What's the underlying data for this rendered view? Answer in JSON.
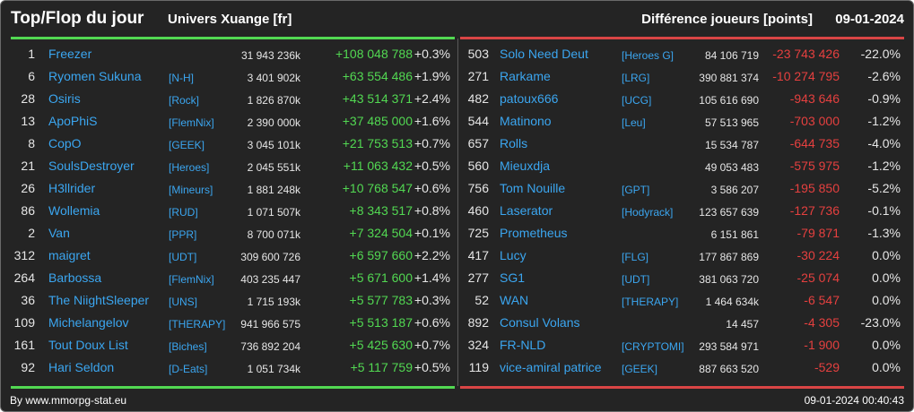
{
  "header": {
    "title": "Top/Flop du jour",
    "universe": "Univers Xuange [fr]",
    "metric": "Différence joueurs [points]",
    "date": "09-01-2024"
  },
  "colors": {
    "gain": "#52d852",
    "loss": "#e5403f",
    "link": "#3ba6f0",
    "background": "#242424"
  },
  "top": [
    {
      "rank": "1",
      "name": "Freezer",
      "alliance": "",
      "points": "31 943 236k",
      "diff": "+108 048 788",
      "pct": "+0.3%"
    },
    {
      "rank": "6",
      "name": "Ryomen Sukuna",
      "alliance": "[N-H]",
      "points": "3 401 902k",
      "diff": "+63 554 486",
      "pct": "+1.9%"
    },
    {
      "rank": "28",
      "name": "Osiris",
      "alliance": "[Rock]",
      "points": "1 826 870k",
      "diff": "+43 514 371",
      "pct": "+2.4%"
    },
    {
      "rank": "13",
      "name": "ApoPhiS",
      "alliance": "[FlemNix]",
      "points": "2 390 000k",
      "diff": "+37 485 000",
      "pct": "+1.6%"
    },
    {
      "rank": "8",
      "name": "CopO",
      "alliance": "[GEEK]",
      "points": "3 045 101k",
      "diff": "+21 753 513",
      "pct": "+0.7%"
    },
    {
      "rank": "21",
      "name": "SoulsDestroyer",
      "alliance": "[Heroes]",
      "points": "2 045 551k",
      "diff": "+11 063 432",
      "pct": "+0.5%"
    },
    {
      "rank": "26",
      "name": "H3llrider",
      "alliance": "[Mineurs]",
      "points": "1 881 248k",
      "diff": "+10 768 547",
      "pct": "+0.6%"
    },
    {
      "rank": "86",
      "name": "Wollemia",
      "alliance": "[RUD]",
      "points": "1 071 507k",
      "diff": "+8 343 517",
      "pct": "+0.8%"
    },
    {
      "rank": "2",
      "name": "Van",
      "alliance": "[PPR]",
      "points": "8 700 071k",
      "diff": "+7 324 504",
      "pct": "+0.1%"
    },
    {
      "rank": "312",
      "name": "maigret",
      "alliance": "[UDT]",
      "points": "309 600 726",
      "diff": "+6 597 660",
      "pct": "+2.2%"
    },
    {
      "rank": "264",
      "name": "Barbossa",
      "alliance": "[FlemNix]",
      "points": "403 235 447",
      "diff": "+5 671 600",
      "pct": "+1.4%"
    },
    {
      "rank": "36",
      "name": "The NiightSleeper",
      "alliance": "[UNS]",
      "points": "1 715 193k",
      "diff": "+5 577 783",
      "pct": "+0.3%"
    },
    {
      "rank": "109",
      "name": "Michelangelov",
      "alliance": "[THERAPY]",
      "points": "941 966 575",
      "diff": "+5 513 187",
      "pct": "+0.6%"
    },
    {
      "rank": "161",
      "name": "Tout Doux List",
      "alliance": "[Biches]",
      "points": "736 892 204",
      "diff": "+5 425 630",
      "pct": "+0.7%"
    },
    {
      "rank": "92",
      "name": "Hari Seldon",
      "alliance": "[D-Eats]",
      "points": "1 051 734k",
      "diff": "+5 117 759",
      "pct": "+0.5%"
    }
  ],
  "flop": [
    {
      "rank": "503",
      "name": "Solo Need Deut",
      "alliance": "[Heroes G]",
      "points": "84 106 719",
      "diff": "-23 743 426",
      "pct": "-22.0%"
    },
    {
      "rank": "271",
      "name": "Rarkame",
      "alliance": "[LRG]",
      "points": "390 881 374",
      "diff": "-10 274 795",
      "pct": "-2.6%"
    },
    {
      "rank": "482",
      "name": "patoux666",
      "alliance": "[UCG]",
      "points": "105 616 690",
      "diff": "-943 646",
      "pct": "-0.9%"
    },
    {
      "rank": "544",
      "name": "Matinono",
      "alliance": "[Leu]",
      "points": "57 513 965",
      "diff": "-703 000",
      "pct": "-1.2%"
    },
    {
      "rank": "657",
      "name": "Rolls",
      "alliance": "",
      "points": "15 534 787",
      "diff": "-644 735",
      "pct": "-4.0%"
    },
    {
      "rank": "560",
      "name": "Mieuxdja",
      "alliance": "",
      "points": "49 053 483",
      "diff": "-575 975",
      "pct": "-1.2%"
    },
    {
      "rank": "756",
      "name": "Tom Nouille",
      "alliance": "[GPT]",
      "points": "3 586 207",
      "diff": "-195 850",
      "pct": "-5.2%"
    },
    {
      "rank": "460",
      "name": "Laserator",
      "alliance": "[Hodyrack]",
      "points": "123 657 639",
      "diff": "-127 736",
      "pct": "-0.1%"
    },
    {
      "rank": "725",
      "name": "Prometheus",
      "alliance": "",
      "points": "6 151 861",
      "diff": "-79 871",
      "pct": "-1.3%"
    },
    {
      "rank": "417",
      "name": "Lucy",
      "alliance": "[FLG]",
      "points": "177 867 869",
      "diff": "-30 224",
      "pct": "0.0%"
    },
    {
      "rank": "277",
      "name": "SG1",
      "alliance": "[UDT]",
      "points": "381 063 720",
      "diff": "-25 074",
      "pct": "0.0%"
    },
    {
      "rank": "52",
      "name": "WAN",
      "alliance": "[THERAPY]",
      "points": "1 464 634k",
      "diff": "-6 547",
      "pct": "0.0%"
    },
    {
      "rank": "892",
      "name": "Consul Volans",
      "alliance": "",
      "points": "14 457",
      "diff": "-4 305",
      "pct": "-23.0%"
    },
    {
      "rank": "324",
      "name": "FR-NLD",
      "alliance": "[CRYPTOMI]",
      "points": "293 584 971",
      "diff": "-1 900",
      "pct": "0.0%"
    },
    {
      "rank": "119",
      "name": "vice-amiral patrice",
      "alliance": "[GEEK]",
      "points": "887 663 520",
      "diff": "-529",
      "pct": "0.0%"
    }
  ],
  "footer": {
    "source": "By www.mmorpg-stat.eu",
    "timestamp": "09-01-2024 00:40:43"
  }
}
